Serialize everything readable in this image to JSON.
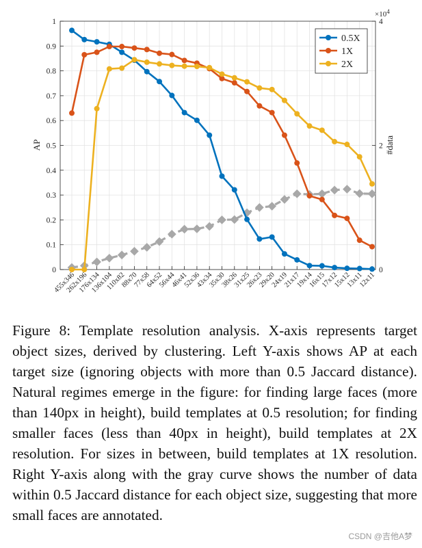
{
  "chart_data": {
    "type": "line",
    "categories": [
      "455x346",
      "262x196",
      "176x134",
      "136x104",
      "110x82",
      "88x70",
      "77x58",
      "64x52",
      "56x44",
      "46x41",
      "52x36",
      "43x34",
      "35x30",
      "38x26",
      "31x25",
      "26x23",
      "29x20",
      "24x19",
      "21x17",
      "19x14",
      "16x15",
      "17x12",
      "15x12",
      "13x11",
      "12x11"
    ],
    "series": [
      {
        "name": "0.5X",
        "color": "#0072bd",
        "axis": "left",
        "values": [
          0.963,
          0.926,
          0.917,
          0.907,
          0.875,
          0.843,
          0.797,
          0.757,
          0.701,
          0.632,
          0.601,
          0.541,
          0.376,
          0.321,
          0.202,
          0.123,
          0.131,
          0.063,
          0.039,
          0.016,
          0.015,
          0.008,
          0.005,
          0.004,
          0.002
        ]
      },
      {
        "name": "1X",
        "color": "#d95319",
        "axis": "left",
        "values": [
          0.63,
          0.865,
          0.875,
          0.898,
          0.898,
          0.892,
          0.886,
          0.871,
          0.866,
          0.842,
          0.831,
          0.809,
          0.769,
          0.752,
          0.717,
          0.659,
          0.632,
          0.541,
          0.429,
          0.297,
          0.282,
          0.218,
          0.206,
          0.118,
          0.092
        ]
      },
      {
        "name": "2X",
        "color": "#edb120",
        "axis": "left",
        "values": [
          0.0,
          0.0,
          0.648,
          0.808,
          0.811,
          0.845,
          0.835,
          0.828,
          0.822,
          0.819,
          0.818,
          0.813,
          0.787,
          0.772,
          0.756,
          0.731,
          0.725,
          0.681,
          0.627,
          0.578,
          0.561,
          0.515,
          0.504,
          0.454,
          0.345
        ]
      },
      {
        "name": "#data",
        "color": "#a8a8a8",
        "axis": "right",
        "dashed": true,
        "values": [
          330,
          620,
          1230,
          1840,
          2340,
          2950,
          3580,
          4500,
          5700,
          6500,
          6550,
          6950,
          8000,
          8050,
          9150,
          10000,
          10200,
          11300,
          12200,
          12100,
          12200,
          12800,
          12950,
          12250,
          12200
        ]
      }
    ],
    "xlabel": "",
    "ylabel": "AP",
    "y2label": "#data",
    "ylim": [
      0,
      1
    ],
    "y2lim": [
      0,
      40000
    ],
    "y_ticks": [
      "0",
      "0.1",
      "0.2",
      "0.3",
      "0.4",
      "0.5",
      "0.6",
      "0.7",
      "0.8",
      "0.9",
      "1"
    ],
    "y2_ticks": [
      "0",
      "2",
      "4"
    ],
    "y2_exponent": "×10",
    "y2_exponent_power": "4",
    "legend": {
      "placement": "top-right",
      "entries": [
        "0.5X",
        "1X",
        "2X"
      ]
    },
    "grid": true
  },
  "caption": {
    "text": "Figure 8: Template resolution analysis. X-axis represents target object sizes, derived by clustering. Left Y-axis shows AP at each target size (ignoring objects with more than 0.5 Jaccard distance). Natural regimes emerge in the figure: for finding large faces (more than 140px in height), build templates at 0.5 resolution; for finding smaller faces (less than 40px in height), build templates at 2X resolution. For sizes in between, build templates at 1X resolution. Right Y-axis along with the gray curve shows the number of data within 0.5 Jaccard distance for each object size, suggesting that more small faces are annotated."
  },
  "watermark": "CSDN @吉他A梦"
}
